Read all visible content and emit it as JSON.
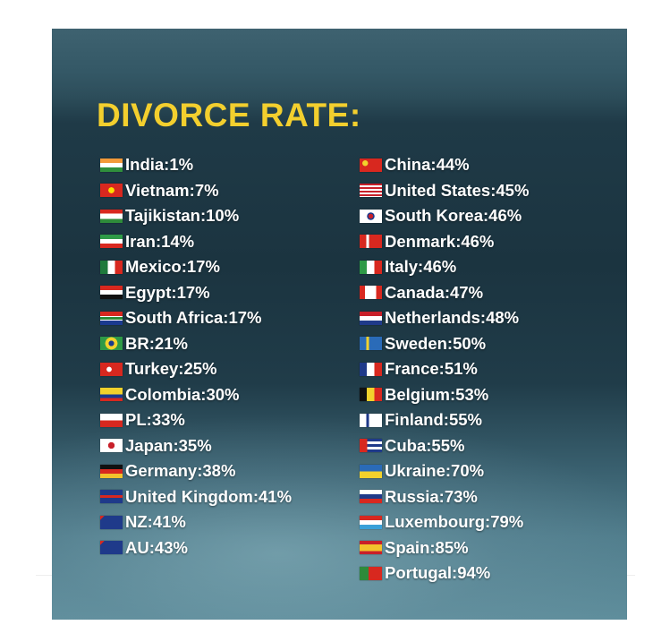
{
  "title": "DIVORCE RATE:",
  "left_column": [
    {
      "name": "India",
      "rate": "1%",
      "flag_icon": "india-flag-icon",
      "flag": "linear-gradient(#f39a3a 0 33%, #ffffff 33% 66%, #2f8f3c 66%)"
    },
    {
      "name": "Vietnam",
      "rate": "7%",
      "flag_icon": "vietnam-flag-icon",
      "flag": "radial-gradient(circle, #ffdd00 0 22%, #d8281f 24%)"
    },
    {
      "name": "Tajikistan",
      "rate": "10%",
      "flag_icon": "tajikistan-flag-icon",
      "flag": "linear-gradient(#d8281f 0 30%, #ffffff 30% 70%, #2e8b3a 70%)"
    },
    {
      "name": "Iran",
      "rate": "14%",
      "flag_icon": "iran-flag-icon",
      "flag": "linear-gradient(#2e9a47 0 33%, #ffffff 33% 66%, #d8281f 66%)"
    },
    {
      "name": "Mexico",
      "rate": "17%",
      "flag_icon": "mexico-flag-icon",
      "flag": "linear-gradient(90deg, #1e7a3c 0 33%, #ffffff 33% 66%, #d8281f 66%)"
    },
    {
      "name": "Egypt",
      "rate": "17%",
      "flag_icon": "egypt-flag-icon",
      "flag": "linear-gradient(#d8281f 0 33%, #ffffff 33% 66%, #111111 66%)"
    },
    {
      "name": "South Africa",
      "rate": "17%",
      "flag_icon": "south-africa-flag-icon",
      "flag": "linear-gradient(#d8281f 0 33%, #ffffff 33% 40%, #2e8b3a 40% 60%, #ffffff 60% 67%, #1a3a8f 67%)"
    },
    {
      "name": "BR",
      "rate": "21%",
      "flag_icon": "brazil-flag-icon",
      "flag": "radial-gradient(circle, #1a3a8f 0 20%, #f2d22c 22% 46%, #2e9a47 48%)"
    },
    {
      "name": "Turkey",
      "rate": "25%",
      "flag_icon": "turkey-flag-icon",
      "flag": "radial-gradient(circle at 40% 50%, #ffffff 0 16%, #d8281f 18%)"
    },
    {
      "name": "Colombia",
      "rate": "30%",
      "flag_icon": "colombia-flag-icon",
      "flag": "linear-gradient(#f2d22c 0 50%, #1a3a8f 50% 75%, #d8281f 75%)"
    },
    {
      "name": "PL",
      "rate": "33%",
      "flag_icon": "poland-flag-icon",
      "flag": "linear-gradient(#ffffff 0 50%, #d8281f 50%)"
    },
    {
      "name": "Japan",
      "rate": "35%",
      "flag_icon": "japan-flag-icon",
      "flag": "radial-gradient(circle, #c8202a 0 24%, #ffffff 26%)"
    },
    {
      "name": "Germany",
      "rate": "38%",
      "flag_icon": "germany-flag-icon",
      "flag": "linear-gradient(#111111 0 33%, #d8281f 33% 66%, #f2c22c 66%)"
    },
    {
      "name": "United Kingdom",
      "rate": "41%",
      "flag_icon": "united-kingdom-flag-icon",
      "flag": "linear-gradient(#1f3a8a 0 40%, #d8281f 40% 60%, #1f3a8a 60%)"
    },
    {
      "name": "NZ",
      "rate": "41%",
      "flag_icon": "new-zealand-flag-icon",
      "flag": "linear-gradient(135deg, #d8281f 0 12%, #1f3a8a 12%)"
    },
    {
      "name": "AU",
      "rate": "43%",
      "flag_icon": "australia-flag-icon",
      "flag": "linear-gradient(135deg, #d8281f 0 12%, #1f3a8a 12%)"
    }
  ],
  "right_column": [
    {
      "name": "China",
      "rate": "44%",
      "flag_icon": "china-flag-icon",
      "flag": "radial-gradient(circle at 25% 35%, #f2d22c 0 14%, #d8281f 16%)"
    },
    {
      "name": "United States",
      "rate": "45%",
      "flag_icon": "united-states-flag-icon",
      "flag": "repeating-linear-gradient(#c8202a 0 2px, #ffffff 2px 4px)"
    },
    {
      "name": "South Korea",
      "rate": "46%",
      "flag_icon": "south-korea-flag-icon",
      "flag": "radial-gradient(circle, #c8202a 0 18%, #1f3a8a 19% 28%, #ffffff 30%)"
    },
    {
      "name": "Denmark",
      "rate": "46%",
      "flag_icon": "denmark-flag-icon",
      "flag": "linear-gradient(90deg, #d8281f 0 30%, #ffffff 30% 42%, #d8281f 42%)"
    },
    {
      "name": "Italy",
      "rate": "46%",
      "flag_icon": "italy-flag-icon",
      "flag": "linear-gradient(90deg, #2e9a47 0 33%, #ffffff 33% 66%, #d8281f 66%)"
    },
    {
      "name": "Canada",
      "rate": "47%",
      "flag_icon": "canada-flag-icon",
      "flag": "linear-gradient(90deg, #d8281f 0 25%, #ffffff 25% 75%, #d8281f 75%)"
    },
    {
      "name": "Netherlands",
      "rate": "48%",
      "flag_icon": "netherlands-flag-icon",
      "flag": "linear-gradient(#c8202a 0 33%, #ffffff 33% 66%, #1f3a8a 66%)"
    },
    {
      "name": "Sweden",
      "rate": "50%",
      "flag_icon": "sweden-flag-icon",
      "flag": "linear-gradient(90deg, #2a6bb8 0 30%, #f2d22c 30% 42%, #2a6bb8 42%)"
    },
    {
      "name": "France",
      "rate": "51%",
      "flag_icon": "france-flag-icon",
      "flag": "linear-gradient(90deg, #1f3a8a 0 33%, #ffffff 33% 66%, #d8281f 66%)"
    },
    {
      "name": "Belgium",
      "rate": "53%",
      "flag_icon": "belgium-flag-icon",
      "flag": "linear-gradient(90deg, #111111 0 33%, #f2d22c 33% 66%, #d8281f 66%)"
    },
    {
      "name": "Finland",
      "rate": "55%",
      "flag_icon": "finland-flag-icon",
      "flag": "linear-gradient(90deg, #ffffff 0 30%, #1f3a8a 30% 42%, #ffffff 42%)"
    },
    {
      "name": "Cuba",
      "rate": "55%",
      "flag_icon": "cuba-flag-icon",
      "flag": "linear-gradient(90deg, #d8281f 0 35%, rgba(0,0,0,0) 35%), repeating-linear-gradient(#1f3a8a 0 3px, #ffffff 3px 6px)"
    },
    {
      "name": "Ukraine",
      "rate": "70%",
      "flag_icon": "ukraine-flag-icon",
      "flag": "linear-gradient(#2a6bb8 0 50%, #f2d22c 50%)"
    },
    {
      "name": "Russia",
      "rate": "73%",
      "flag_icon": "russia-flag-icon",
      "flag": "linear-gradient(#ffffff 0 33%, #1f3a8a 33% 66%, #d8281f 66%)"
    },
    {
      "name": "Luxembourg",
      "rate": "79%",
      "flag_icon": "luxembourg-flag-icon",
      "flag": "linear-gradient(#d8281f 0 33%, #ffffff 33% 66%, #3aa0d8 66%)"
    },
    {
      "name": "Spain",
      "rate": "85%",
      "flag_icon": "spain-flag-icon",
      "flag": "linear-gradient(#c8202a 0 25%, #f2c22c 25% 75%, #c8202a 75%)"
    },
    {
      "name": "Portugal",
      "rate": "94%",
      "flag_icon": "portugal-flag-icon",
      "flag": "linear-gradient(90deg, #2e8b3a 0 40%, #d8281f 40%)"
    }
  ]
}
